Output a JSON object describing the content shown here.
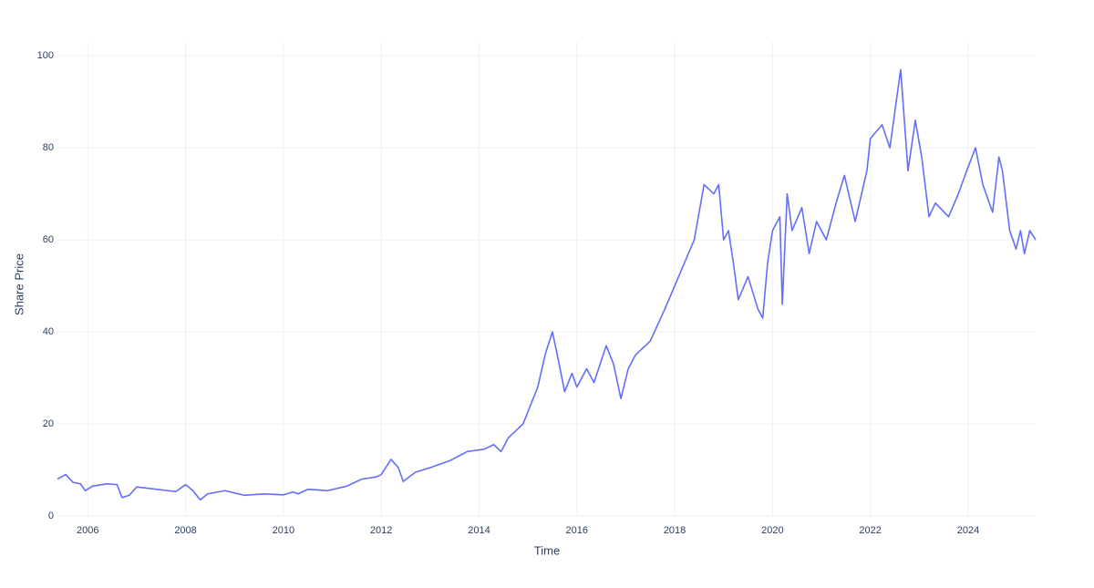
{
  "chart_data": {
    "type": "line",
    "xlabel": "Time",
    "ylabel": "Share Price",
    "color": "#636efa",
    "grid": true,
    "xlim": [
      2005.38,
      2025.38
    ],
    "xticks": [
      2006,
      2008,
      2010,
      2012,
      2014,
      2016,
      2018,
      2020,
      2022,
      2024
    ],
    "ylim": [
      0,
      103
    ],
    "yticks": [
      0,
      20,
      40,
      60,
      80,
      100
    ],
    "x": [
      2005.38,
      2005.55,
      2005.7,
      2005.85,
      2005.95,
      2006.1,
      2006.4,
      2006.6,
      2006.7,
      2006.85,
      2007.0,
      2007.4,
      2007.8,
      2008.0,
      2008.15,
      2008.3,
      2008.45,
      2008.8,
      2009.2,
      2009.6,
      2010.0,
      2010.2,
      2010.3,
      2010.5,
      2010.9,
      2011.3,
      2011.6,
      2011.9,
      2012.0,
      2012.2,
      2012.35,
      2012.45,
      2012.7,
      2013.0,
      2013.4,
      2013.76,
      2014.1,
      2014.3,
      2014.45,
      2014.6,
      2014.8,
      2014.9,
      2015.05,
      2015.2,
      2015.35,
      2015.5,
      2015.6,
      2015.75,
      2015.9,
      2016.0,
      2016.2,
      2016.35,
      2016.6,
      2016.75,
      2016.9,
      2017.05,
      2017.2,
      2017.5,
      2017.8,
      2018.0,
      2018.2,
      2018.4,
      2018.6,
      2018.8,
      2018.9,
      2019.0,
      2019.1,
      2019.2,
      2019.3,
      2019.5,
      2019.7,
      2019.8,
      2019.9,
      2020.0,
      2020.15,
      2020.2,
      2020.3,
      2020.4,
      2020.6,
      2020.75,
      2020.9,
      2021.1,
      2021.3,
      2021.47,
      2021.69,
      2021.93,
      2022.0,
      2022.24,
      2022.4,
      2022.62,
      2022.77,
      2022.92,
      2023.05,
      2023.2,
      2023.33,
      2023.6,
      2023.8,
      2023.97,
      2024.15,
      2024.3,
      2024.5,
      2024.63,
      2024.7,
      2024.85,
      2024.98,
      2025.07,
      2025.15,
      2025.26,
      2025.38
    ],
    "values": [
      8,
      9,
      7.3,
      7,
      5.5,
      6.5,
      7,
      6.8,
      4,
      4.5,
      6.3,
      5.8,
      5.3,
      6.8,
      5.5,
      3.5,
      4.8,
      5.5,
      4.5,
      4.8,
      4.6,
      5.2,
      4.8,
      5.8,
      5.5,
      6.5,
      8,
      8.5,
      9,
      12.3,
      10.5,
      7.5,
      9.5,
      10.5,
      12,
      14,
      14.5,
      15.5,
      14,
      17,
      19,
      20,
      24,
      28,
      35,
      40,
      35,
      27,
      31,
      28,
      32,
      29,
      37,
      33,
      25.5,
      32,
      35,
      38,
      45,
      50,
      55,
      60,
      72,
      70,
      72,
      60,
      62,
      55,
      47,
      52,
      45,
      43,
      55,
      62,
      65,
      46,
      70,
      62,
      67,
      57,
      64,
      60,
      68,
      74,
      64,
      75,
      82,
      85,
      80,
      97,
      75,
      86,
      78,
      65,
      68,
      65,
      70,
      75,
      80,
      72,
      66,
      78,
      75,
      62,
      58,
      62,
      57,
      62,
      60
    ]
  }
}
